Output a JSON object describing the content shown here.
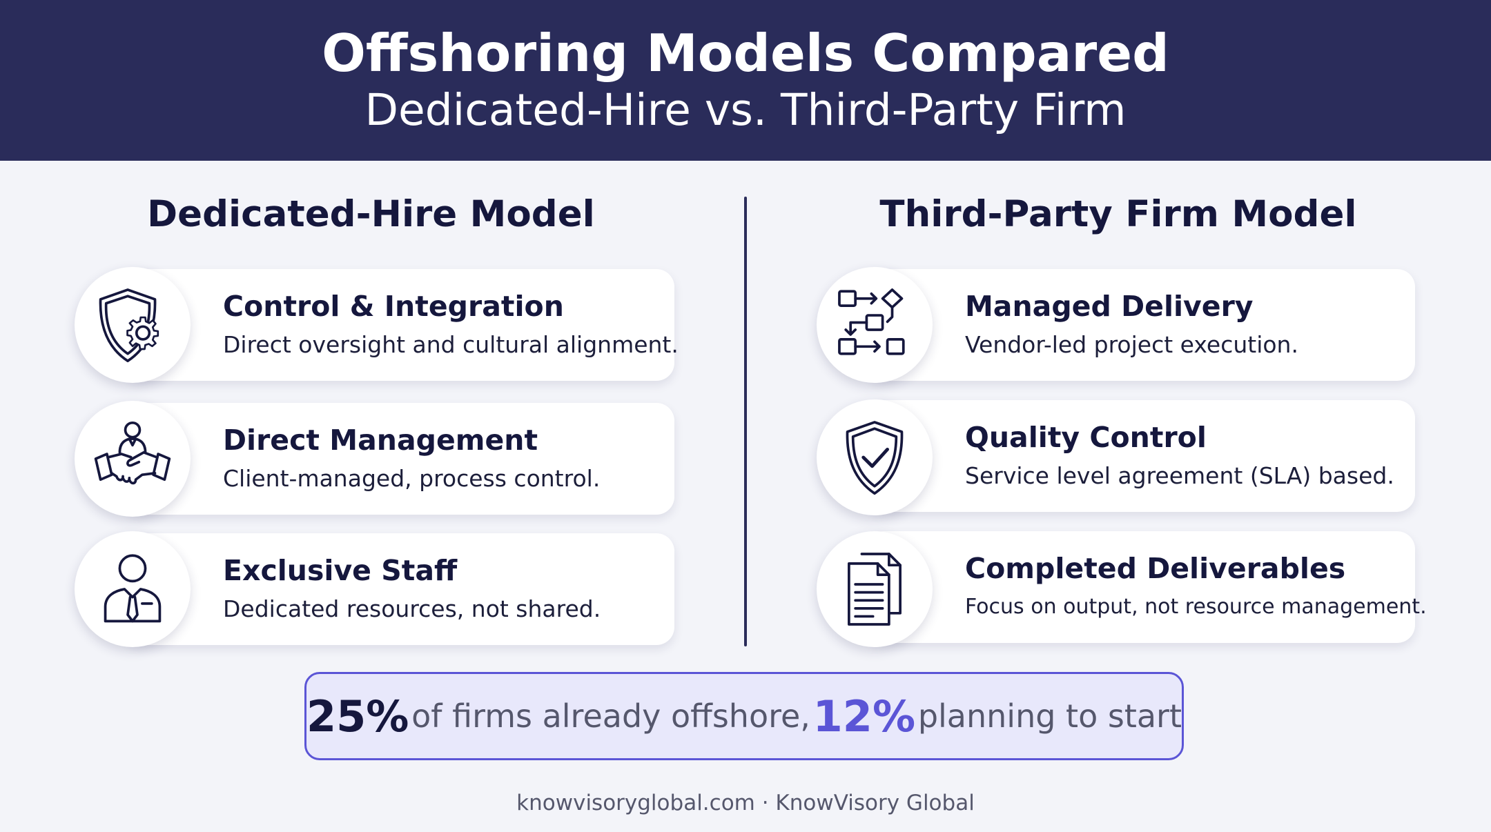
{
  "header": {
    "title": "Offshoring Models Compared",
    "subtitle": "Dedicated-Hire vs. Third-Party Firm"
  },
  "columns": {
    "left": {
      "heading": "Dedicated-Hire Model",
      "cards": [
        {
          "icon": "shield-gear-icon",
          "title": "Control & Integration",
          "desc": "Direct oversight and cultural alignment."
        },
        {
          "icon": "manager-handshake-icon",
          "title": "Direct Management",
          "desc": "Client-managed, process control."
        },
        {
          "icon": "employee-icon",
          "title": "Exclusive Staff",
          "desc": "Dedicated resources, not shared."
        }
      ]
    },
    "right": {
      "heading": "Third-Party Firm Model",
      "cards": [
        {
          "icon": "workflow-icon",
          "title": "Managed Delivery",
          "desc": "Vendor-led project execution."
        },
        {
          "icon": "shield-check-icon",
          "title": "Quality Control",
          "desc": "Service level agreement (SLA) based."
        },
        {
          "icon": "documents-icon",
          "title": "Completed Deliverables",
          "desc": "Focus on output, not resource management."
        }
      ]
    }
  },
  "stat": {
    "value1": "25%",
    "text1": "of firms already offshore,",
    "value2": "12%",
    "text2": "planning to start"
  },
  "footer": {
    "text": "knowvisoryglobal.com · KnowVisory Global"
  },
  "colors": {
    "header_bg": "#2a2c5a",
    "accent": "#5b55d6",
    "page_bg": "#f3f4f9"
  }
}
